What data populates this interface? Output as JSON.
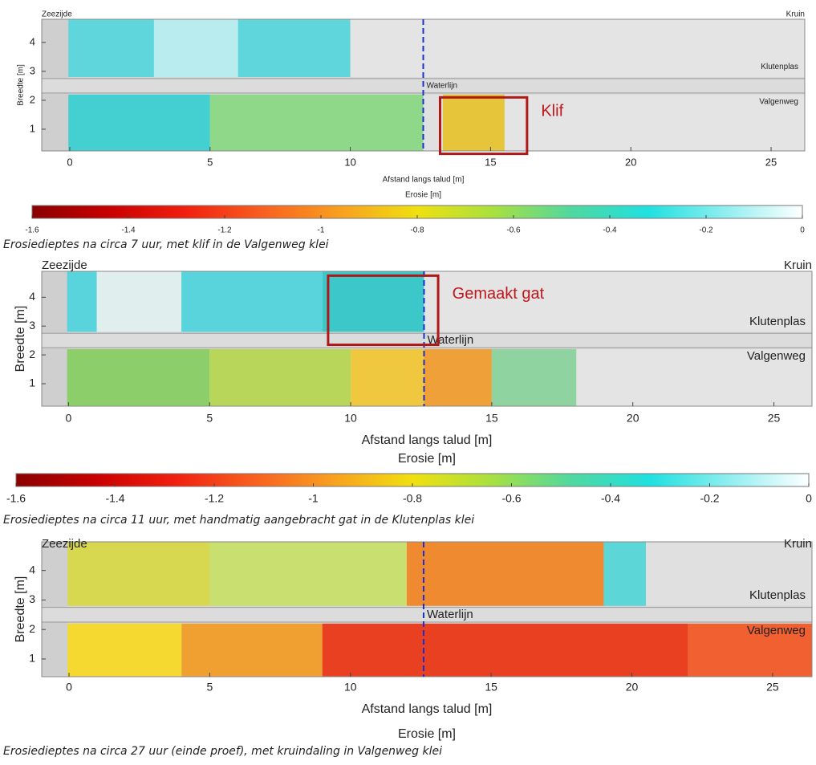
{
  "chart_data": [
    {
      "type": "heatmap",
      "caption": "Erosiedieptes na circa 7 uur, met klif in de Valgenweg klei",
      "xlabel": "Afstand langs talud [m]",
      "ylabel": "Breedte [m]",
      "xlim": [
        -1,
        26.2
      ],
      "ylim": [
        0.25,
        4.8
      ],
      "xticks": [
        0,
        5,
        10,
        15,
        20,
        25
      ],
      "yticks": [
        1,
        2,
        3,
        4
      ],
      "ends": {
        "left": "Zeezijde",
        "right": "Kruin"
      },
      "regions": {
        "upper": "Klutenplas",
        "lower": "Valgenweg"
      },
      "waterline": {
        "label": "Waterlijn",
        "x": 12.6
      },
      "annotation": "Klif",
      "colorbar": {
        "label": "Erosie [m]",
        "lim": [
          -1.6,
          0
        ],
        "ticks": [
          -1.6,
          -1.4,
          -1.2,
          -1,
          -0.8,
          -0.6,
          -0.4,
          -0.2,
          0
        ],
        "colors": [
          "#8b0000",
          "#c80000",
          "#f02010",
          "#f86020",
          "#f8a020",
          "#f0e010",
          "#a8e040",
          "#50d8a0",
          "#20e0e0",
          "#90eef0",
          "#ffffff"
        ]
      }
    },
    {
      "type": "heatmap",
      "caption": "Erosiedieptes na circa 11 uur, met handmatig aangebracht gat in de Klutenplas klei",
      "xlabel": "Afstand langs talud [m]",
      "ylabel": "Breedte [m]",
      "xlim": [
        -0.95,
        26.35
      ],
      "ylim": [
        0.22,
        4.9
      ],
      "xticks": [
        0,
        5,
        10,
        15,
        20,
        25
      ],
      "yticks": [
        1,
        2,
        3,
        4
      ],
      "ends": {
        "left": "Zeezijde",
        "right": "Kruin"
      },
      "regions": {
        "upper": "Klutenplas",
        "lower": "Valgenweg"
      },
      "waterline": {
        "label": "Waterlijn",
        "x": 12.6
      },
      "annotation": "Gemaakt gat",
      "colorbar": {
        "label": "Erosie [m]",
        "lim": [
          -1.6,
          0
        ],
        "ticks": [
          -1.6,
          -1.4,
          -1.2,
          -1,
          -0.8,
          -0.6,
          -0.4,
          -0.2,
          0
        ],
        "colors": [
          "#8b0000",
          "#c80000",
          "#f02010",
          "#f86020",
          "#f8a020",
          "#f0e010",
          "#a8e040",
          "#50d8a0",
          "#20e0e0",
          "#90eef0",
          "#ffffff"
        ]
      }
    },
    {
      "type": "heatmap",
      "caption": "Erosiedieptes na circa 27 uur (einde proef), met kruindaling in Valgenweg klei",
      "xlabel": "Afstand langs talud [m]",
      "ylabel": "Breedte [m]",
      "xlim": [
        -0.97,
        26.4
      ],
      "ylim": [
        0.4,
        4.97
      ],
      "xticks": [
        0,
        5,
        10,
        15,
        20,
        25
      ],
      "yticks": [
        1,
        2,
        3,
        4
      ],
      "ends": {
        "left": "Zeezijde",
        "right": "Kruin"
      },
      "regions": {
        "upper": "Klutenplas",
        "lower": "Valgenweg"
      },
      "waterline": {
        "label": "Waterlijn",
        "x": 12.6
      },
      "colorbar": {
        "label": "Erosie [m]"
      }
    }
  ]
}
